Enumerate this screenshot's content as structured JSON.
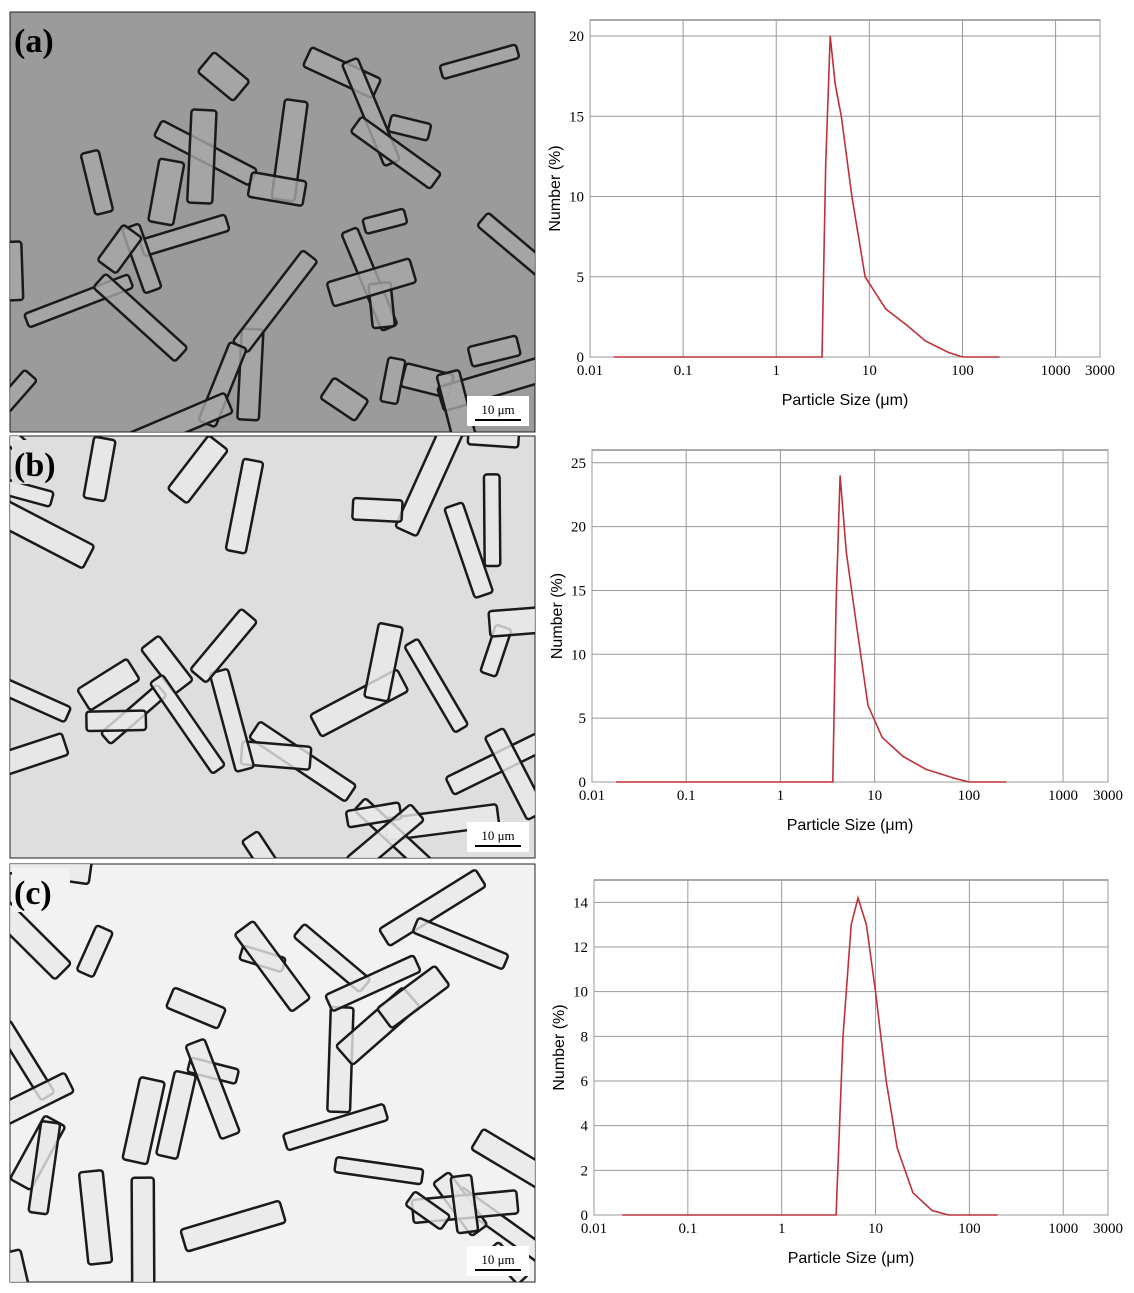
{
  "panels": [
    {
      "label": "(a)",
      "scale_bar": "10 μm"
    },
    {
      "label": "(b)",
      "scale_bar": "10 μm"
    },
    {
      "label": "(c)",
      "scale_bar": "10 μm"
    }
  ],
  "chart_data": [
    {
      "type": "line",
      "xlabel": "Particle Size (μm)",
      "ylabel": "Number (%)",
      "log_x": true,
      "grid": true,
      "color": "#c0303a",
      "x": [
        0.018,
        3.1,
        3.4,
        3.8,
        4.3,
        5,
        6.5,
        9,
        15,
        25,
        40,
        70,
        100,
        250
      ],
      "values": [
        0,
        0,
        12,
        20,
        17,
        15,
        10,
        5,
        3,
        2,
        1,
        0.3,
        0,
        0
      ],
      "xlim": [
        0.01,
        3000
      ],
      "xticks": [
        0.01,
        0.1,
        1,
        10,
        100,
        1000,
        3000
      ],
      "ylim": [
        0,
        21
      ],
      "yticks": [
        0,
        5,
        10,
        15,
        20
      ]
    },
    {
      "type": "line",
      "xlabel": "Particle Size (μm)",
      "ylabel": "Number (%)",
      "log_x": true,
      "grid": true,
      "color": "#c0303a",
      "x": [
        0.018,
        3.6,
        3.9,
        4.3,
        5,
        6.5,
        8.5,
        12,
        20,
        35,
        70,
        100,
        250
      ],
      "values": [
        0,
        0,
        14,
        24,
        18,
        12,
        6,
        3.5,
        2,
        1,
        0.3,
        0,
        0
      ],
      "xlim": [
        0.01,
        3000
      ],
      "xticks": [
        0.01,
        0.1,
        1,
        10,
        100,
        1000,
        3000
      ],
      "ylim": [
        0,
        26
      ],
      "yticks": [
        0,
        5,
        10,
        15,
        20,
        25
      ]
    },
    {
      "type": "line",
      "xlabel": "Particle Size (μm)",
      "ylabel": "Number (%)",
      "log_x": true,
      "grid": true,
      "color": "#c0303a",
      "x": [
        0.02,
        3.8,
        4.5,
        5.5,
        6.5,
        8,
        10,
        13,
        17,
        25,
        40,
        60,
        200
      ],
      "values": [
        0,
        0,
        8,
        13,
        14.2,
        13,
        10,
        6,
        3,
        1,
        0.2,
        0,
        0
      ],
      "xlim": [
        0.01,
        3000
      ],
      "xticks": [
        0.01,
        0.1,
        1,
        10,
        100,
        1000,
        3000
      ],
      "ylim": [
        0,
        15
      ],
      "yticks": [
        0,
        2,
        4,
        6,
        8,
        10,
        12,
        14
      ]
    }
  ]
}
